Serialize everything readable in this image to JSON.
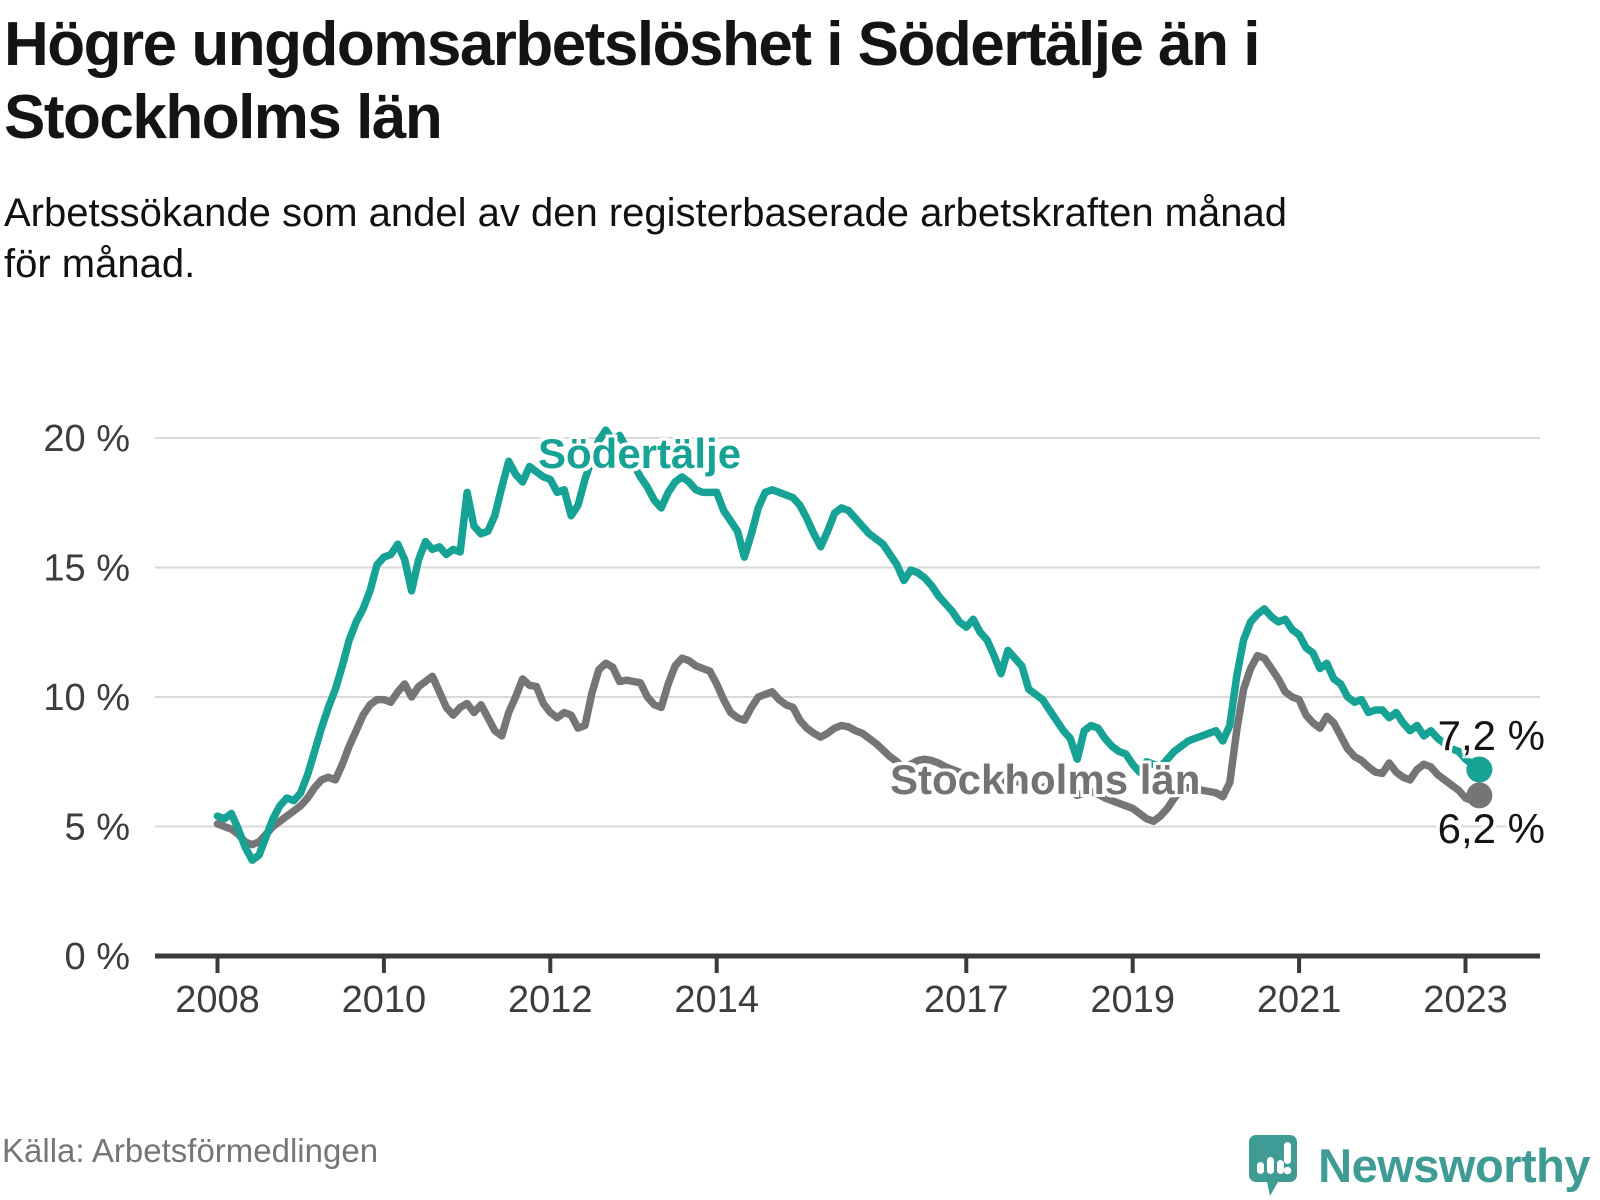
{
  "title": {
    "line1": "Högre ungdomsarbetslöshet i Södertälje än i",
    "line2": "Stockholms län"
  },
  "subtitle": {
    "line1": "Arbetssökande som andel av den registerbaserade arbetskraften månad",
    "line2": "för månad."
  },
  "source": "Källa: Arbetsförmedlingen",
  "branding": {
    "name": "Newsworthy"
  },
  "colors": {
    "sodertalje": "#16a295",
    "stockholm": "#757578",
    "axis": "#3a3a3a",
    "gridline": "#d9d9d9",
    "tick_label": "#3d3d3d",
    "end_label": "#141414",
    "logo_teal": "#3f9c94"
  },
  "chart_data": {
    "type": "line",
    "title": "Högre ungdomsarbetslöshet i Södertälje än i Stockholms län",
    "subtitle": "Arbetssökande som andel av den registerbaserade arbetskraften månad för månad.",
    "xlabel": "",
    "ylabel": "",
    "grid": "horizontal",
    "legend_position": "inline-annotations",
    "x_axis": {
      "unit": "month",
      "start_year": 2008,
      "start_month": 1,
      "interval_months": 1,
      "tick_years": [
        2008,
        2010,
        2012,
        2014,
        2017,
        2019,
        2021,
        2023
      ],
      "tick_labels": [
        "2008",
        "2010",
        "2012",
        "2014",
        "2017",
        "2019",
        "2021",
        "2023"
      ]
    },
    "y_axis": {
      "range": [
        0,
        21
      ],
      "ticks": [
        {
          "value": 20,
          "label": "20 %"
        },
        {
          "value": 15,
          "label": "15 %"
        },
        {
          "value": 10,
          "label": "10 %"
        },
        {
          "value": 5,
          "label": "5 %"
        },
        {
          "value": 0,
          "label": "0 %"
        }
      ]
    },
    "series": [
      {
        "name": "Södertälje",
        "color": "#16a295",
        "end_value": 7.2,
        "end_label": "7,2 %",
        "values": [
          5.4,
          5.3,
          5.5,
          4.9,
          4.2,
          3.7,
          3.9,
          4.6,
          5.3,
          5.8,
          6.1,
          6.0,
          6.3,
          7.0,
          7.9,
          8.8,
          9.6,
          10.3,
          11.2,
          12.2,
          12.9,
          13.4,
          14.1,
          15.1,
          15.4,
          15.5,
          15.9,
          15.3,
          14.1,
          15.3,
          16.0,
          15.7,
          15.8,
          15.5,
          15.7,
          15.6,
          17.9,
          16.6,
          16.3,
          16.4,
          17.0,
          18.1,
          19.1,
          18.6,
          18.3,
          18.9,
          18.7,
          18.5,
          18.4,
          17.9,
          18.0,
          17.0,
          17.4,
          18.4,
          19.2,
          19.9,
          20.3,
          19.9,
          20.1,
          19.6,
          19.0,
          18.5,
          18.1,
          17.6,
          17.3,
          17.9,
          18.3,
          18.5,
          18.3,
          18.0,
          17.9,
          17.9,
          17.9,
          17.2,
          16.8,
          16.4,
          15.4,
          16.3,
          17.3,
          17.9,
          18.0,
          17.9,
          17.8,
          17.7,
          17.4,
          16.9,
          16.3,
          15.8,
          16.4,
          17.1,
          17.3,
          17.2,
          16.9,
          16.6,
          16.3,
          16.1,
          15.9,
          15.5,
          15.1,
          14.5,
          14.9,
          14.8,
          14.6,
          14.3,
          13.9,
          13.6,
          13.3,
          12.9,
          12.7,
          13.0,
          12.5,
          12.2,
          11.6,
          10.9,
          11.8,
          11.5,
          11.2,
          10.3,
          10.1,
          9.9,
          9.5,
          9.1,
          8.7,
          8.4,
          7.6,
          8.7,
          8.9,
          8.8,
          8.4,
          8.1,
          7.9,
          7.8,
          7.4,
          7.1,
          7.5,
          7.4,
          7.3,
          7.6,
          7.9,
          8.1,
          8.3,
          8.4,
          8.5,
          8.6,
          8.7,
          8.3,
          8.9,
          10.8,
          12.2,
          12.9,
          13.2,
          13.4,
          13.1,
          12.9,
          13.0,
          12.6,
          12.4,
          11.9,
          11.7,
          11.1,
          11.3,
          10.7,
          10.5,
          10.0,
          9.8,
          9.9,
          9.4,
          9.5,
          9.5,
          9.2,
          9.4,
          9.0,
          8.7,
          8.9,
          8.5,
          8.7,
          8.4,
          8.2,
          8.0,
          7.9,
          7.6,
          7.4,
          7.2
        ]
      },
      {
        "name": "Stockholms län",
        "color": "#757578",
        "end_value": 6.2,
        "end_label": "6,2 %",
        "values": [
          5.1,
          5.0,
          4.9,
          4.7,
          4.4,
          4.3,
          4.4,
          4.7,
          5.0,
          5.2,
          5.4,
          5.6,
          5.8,
          6.1,
          6.5,
          6.8,
          6.9,
          6.8,
          7.4,
          8.1,
          8.7,
          9.3,
          9.7,
          9.9,
          9.9,
          9.8,
          10.2,
          10.5,
          10.0,
          10.4,
          10.6,
          10.8,
          10.2,
          9.6,
          9.3,
          9.6,
          9.75,
          9.4,
          9.7,
          9.2,
          8.7,
          8.5,
          9.4,
          10.0,
          10.7,
          10.45,
          10.4,
          9.75,
          9.4,
          9.2,
          9.4,
          9.3,
          8.8,
          8.9,
          10.15,
          11.05,
          11.3,
          11.15,
          10.6,
          10.65,
          10.6,
          10.55,
          10.0,
          9.7,
          9.6,
          10.5,
          11.2,
          11.5,
          11.4,
          11.2,
          11.1,
          11.0,
          10.5,
          9.9,
          9.4,
          9.2,
          9.1,
          9.6,
          10.0,
          10.1,
          10.2,
          9.9,
          9.7,
          9.6,
          9.1,
          8.8,
          8.6,
          8.45,
          8.6,
          8.8,
          8.9,
          8.85,
          8.7,
          8.6,
          8.4,
          8.2,
          7.95,
          7.7,
          7.5,
          7.2,
          7.4,
          7.55,
          7.6,
          7.55,
          7.45,
          7.3,
          7.2,
          7.1,
          7.0,
          6.95,
          6.9,
          6.8,
          6.7,
          6.75,
          6.8,
          6.75,
          6.7,
          6.6,
          6.5,
          6.5,
          6.6,
          6.75,
          6.6,
          6.4,
          6.2,
          6.3,
          6.35,
          6.25,
          6.1,
          6.0,
          5.9,
          5.8,
          5.7,
          5.5,
          5.3,
          5.2,
          5.4,
          5.7,
          6.1,
          6.4,
          6.5,
          6.45,
          6.4,
          6.35,
          6.3,
          6.15,
          6.7,
          8.7,
          10.3,
          11.1,
          11.6,
          11.5,
          11.1,
          10.7,
          10.2,
          10.0,
          9.9,
          9.3,
          9.0,
          8.8,
          9.25,
          9.0,
          8.5,
          8.0,
          7.7,
          7.55,
          7.3,
          7.1,
          7.05,
          7.45,
          7.1,
          6.9,
          6.8,
          7.2,
          7.4,
          7.3,
          7.0,
          6.8,
          6.6,
          6.4,
          6.1,
          6.0,
          6.2
        ]
      }
    ]
  }
}
